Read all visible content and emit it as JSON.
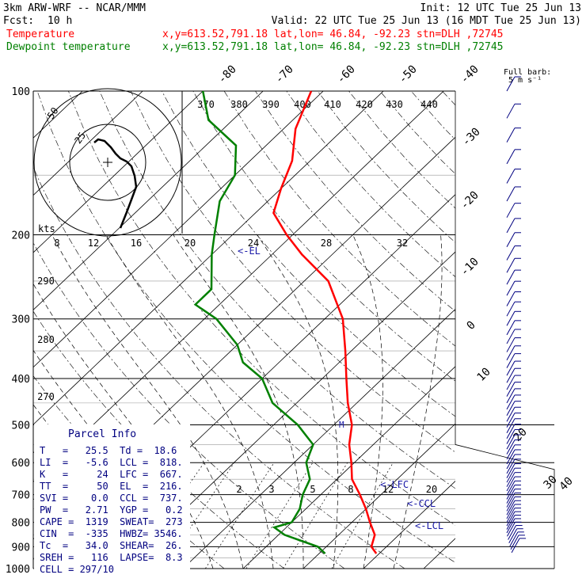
{
  "header": {
    "model": "3km ARW-WRF -- NCAR/MMM",
    "init": "Init: 12 UTC Tue 25 Jun 13",
    "fcst_label": "Fcst:",
    "fcst_value": "10 h",
    "valid": "Valid: 22 UTC Tue 25 Jun 13 (16 MDT Tue 25 Jun 13)",
    "temp_legend": "Temperature",
    "dew_legend": "Dewpoint temperature",
    "loc_info": "x,y=613.52,791.18   lat,lon= 46.84, -92.23   stn=DLH ,72745"
  },
  "barb_legend": {
    "line1": "Full barb:",
    "line2": "5 m s⁻¹"
  },
  "hodograph": {
    "units": "kts",
    "rings": [
      "25",
      "50"
    ]
  },
  "parcel": {
    "title": "Parcel Info",
    "rows": [
      "T   =   25.5  Td =  18.6",
      "LI  =   -5.6  LCL =  818.",
      "K   =     24  LFC =  667.",
      "TT  =     50  EL  =  216.",
      "SVI =    0.0  CCL =  737.",
      "PW  =   2.71  YGP =   0.2",
      "CAPE =  1319  SWEAT=  273",
      "CIN  =  -335  HWBZ= 3546.",
      "Tc  =   34.0  SHEAR=  26.",
      "SREH =   116  LAPSE=  8.3",
      "CELL = 297/10"
    ]
  },
  "chart_data": {
    "type": "line",
    "diagram": "skew-T log-p",
    "y_axis": {
      "scale": "log",
      "range": [
        1000,
        100
      ],
      "tick_labels": [
        "100",
        "200",
        "300",
        "400",
        "500",
        "600",
        "700",
        "800",
        "900",
        "1000"
      ]
    },
    "isotherm_labels": [
      "-80",
      "-70",
      "-60",
      "-50",
      "-40",
      "-30",
      "-20",
      "-10",
      "0",
      "10",
      "20",
      "30",
      "40"
    ],
    "theta_labels": [
      "370",
      "380",
      "390",
      "400",
      "410",
      "420",
      "430",
      "440"
    ],
    "theta_side_labels": [
      "290",
      "280",
      "270"
    ],
    "thetae_labels": [
      "8",
      "12",
      "16",
      "20",
      "24",
      "28",
      "32"
    ],
    "mixing_ratio_labels": [
      "2",
      "3",
      "5",
      "8",
      "12",
      "20"
    ],
    "series": [
      {
        "name": "Temperature",
        "color": "#ff0000",
        "points": [
          [
            930,
            29.5
          ],
          [
            900,
            27.5
          ],
          [
            850,
            26.0
          ],
          [
            800,
            23.0
          ],
          [
            750,
            20.0
          ],
          [
            700,
            16.5
          ],
          [
            650,
            12.5
          ],
          [
            600,
            9.5
          ],
          [
            550,
            6.0
          ],
          [
            500,
            3.0
          ],
          [
            450,
            -1.5
          ],
          [
            400,
            -6.0
          ],
          [
            350,
            -11.0
          ],
          [
            300,
            -17.0
          ],
          [
            250,
            -26.0
          ],
          [
            220,
            -35.0
          ],
          [
            200,
            -41.0
          ],
          [
            180,
            -47.0
          ],
          [
            160,
            -50.0
          ],
          [
            140,
            -53.0
          ],
          [
            120,
            -58.0
          ],
          [
            100,
            -62.0
          ]
        ]
      },
      {
        "name": "Dewpoint temperature",
        "color": "#008000",
        "points": [
          [
            930,
            21.0
          ],
          [
            900,
            18.6
          ],
          [
            850,
            11.0
          ],
          [
            820,
            8.0
          ],
          [
            800,
            10.0
          ],
          [
            750,
            9.0
          ],
          [
            700,
            7.0
          ],
          [
            650,
            5.5
          ],
          [
            600,
            2.0
          ],
          [
            550,
            0.0
          ],
          [
            500,
            -6.0
          ],
          [
            450,
            -14.0
          ],
          [
            400,
            -20.0
          ],
          [
            370,
            -26.0
          ],
          [
            340,
            -30.0
          ],
          [
            300,
            -38.0
          ],
          [
            280,
            -44.0
          ],
          [
            260,
            -44.0
          ],
          [
            220,
            -50.0
          ],
          [
            200,
            -53.0
          ],
          [
            170,
            -58.0
          ],
          [
            150,
            -60.0
          ],
          [
            130,
            -65.0
          ],
          [
            115,
            -74.0
          ],
          [
            100,
            -80.0
          ]
        ]
      }
    ],
    "annotations": [
      "<-EL",
      "<-LFC",
      "<-CCL",
      "<-LCL"
    ],
    "wind_marker": "M"
  }
}
